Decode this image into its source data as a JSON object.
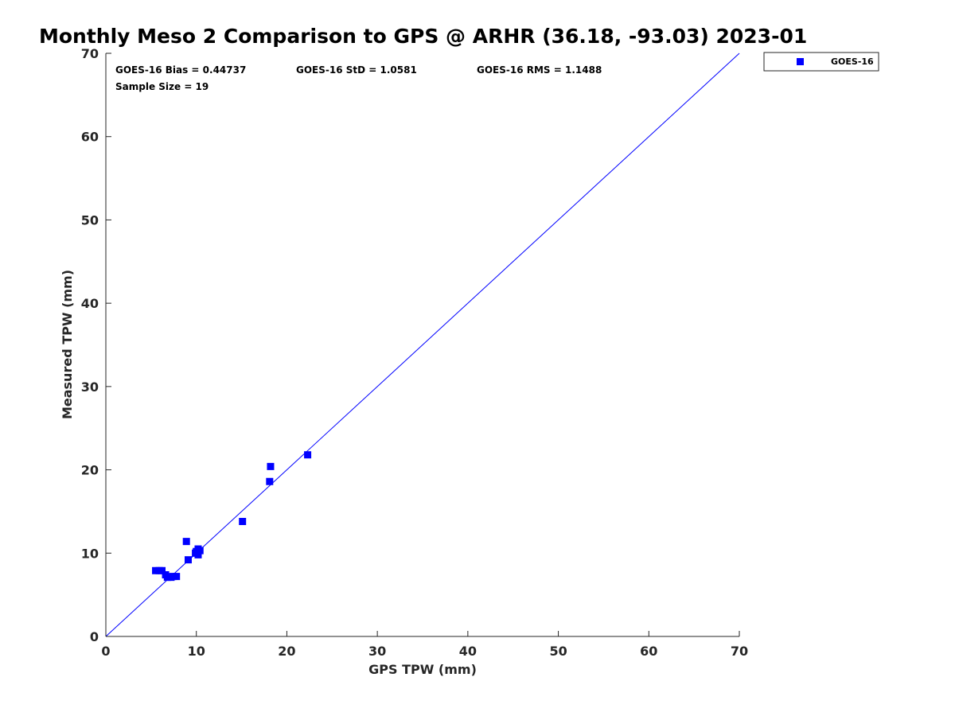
{
  "chart_data": {
    "type": "scatter",
    "title": "Monthly Meso 2 Comparison to GPS @ ARHR (36.18, -93.03) 2023-01",
    "xlabel": "GPS TPW (mm)",
    "ylabel": "Measured TPW (mm)",
    "xlim": [
      0,
      70
    ],
    "ylim": [
      0,
      70
    ],
    "x_ticks": [
      "0",
      "10",
      "20",
      "30",
      "40",
      "50",
      "60",
      "70"
    ],
    "y_ticks": [
      "0",
      "10",
      "20",
      "30",
      "40",
      "50",
      "60",
      "70"
    ],
    "grid": false,
    "legend_position": "outside top-right",
    "reference_line": {
      "type": "y=x",
      "color": "#0000ff"
    },
    "stats": {
      "bias": "GOES-16 Bias = 0.44737",
      "std": "GOES-16 StD = 1.0581",
      "rms": "GOES-16 RMS = 1.1488",
      "sample": "Sample Size = 19"
    },
    "series": [
      {
        "name": "GOES-16",
        "color": "#0000ff",
        "marker": "square",
        "points": [
          {
            "x": 5.5,
            "y": 7.9
          },
          {
            "x": 5.9,
            "y": 7.9
          },
          {
            "x": 6.2,
            "y": 7.9
          },
          {
            "x": 6.6,
            "y": 7.4
          },
          {
            "x": 6.8,
            "y": 7.1
          },
          {
            "x": 7.2,
            "y": 7.1
          },
          {
            "x": 7.4,
            "y": 7.2
          },
          {
            "x": 7.8,
            "y": 7.2
          },
          {
            "x": 8.9,
            "y": 11.4
          },
          {
            "x": 9.1,
            "y": 9.2
          },
          {
            "x": 9.9,
            "y": 10.0
          },
          {
            "x": 10.2,
            "y": 9.8
          },
          {
            "x": 10.2,
            "y": 10.5
          },
          {
            "x": 10.4,
            "y": 10.3
          },
          {
            "x": 15.1,
            "y": 13.8
          },
          {
            "x": 18.1,
            "y": 18.6
          },
          {
            "x": 18.2,
            "y": 20.4
          },
          {
            "x": 22.3,
            "y": 21.8
          },
          {
            "x": 10.0,
            "y": 10.2
          }
        ]
      }
    ]
  }
}
